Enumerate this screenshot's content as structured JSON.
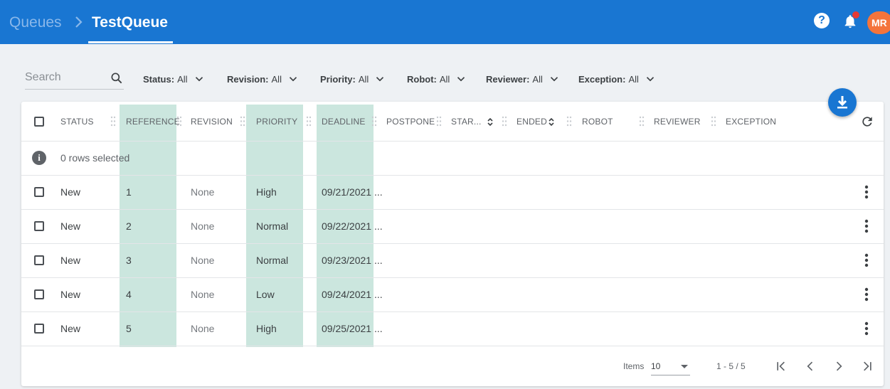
{
  "header": {
    "breadcrumb_root": "Queues",
    "breadcrumb_current": "TestQueue",
    "avatar_initials": "MR",
    "help_glyph": "?",
    "colors": {
      "bar": "#1976d2",
      "avatar": "#f4743b",
      "badge": "#e53935"
    }
  },
  "filters": {
    "search_placeholder": "Search",
    "items": [
      {
        "name": "Status:",
        "value": "All"
      },
      {
        "name": "Revision:",
        "value": "All"
      },
      {
        "name": "Priority:",
        "value": "All"
      },
      {
        "name": "Robot:",
        "value": "All"
      },
      {
        "name": "Reviewer:",
        "value": "All"
      },
      {
        "name": "Exception:",
        "value": "All"
      }
    ]
  },
  "table": {
    "columns": [
      "STATUS",
      "REFERENCE",
      "REVISION",
      "PRIORITY",
      "DEADLINE",
      "POSTPONE",
      "STAR...",
      "ENDED",
      "ROBOT",
      "REVIEWER",
      "EXCEPTION"
    ],
    "selection_info": "0 rows selected",
    "rows": [
      {
        "status": "New",
        "reference": "1",
        "revision": "None",
        "priority": "High",
        "deadline": "09/21/2021 ..."
      },
      {
        "status": "New",
        "reference": "2",
        "revision": "None",
        "priority": "Normal",
        "deadline": "09/22/2021 ..."
      },
      {
        "status": "New",
        "reference": "3",
        "revision": "None",
        "priority": "Normal",
        "deadline": "09/23/2021 ..."
      },
      {
        "status": "New",
        "reference": "4",
        "revision": "None",
        "priority": "Low",
        "deadline": "09/24/2021 ..."
      },
      {
        "status": "New",
        "reference": "5",
        "revision": "None",
        "priority": "High",
        "deadline": "09/25/2021 ..."
      }
    ],
    "highlight_color": "#a5d6c6"
  },
  "pagination": {
    "items_label": "Items",
    "page_size": "10",
    "range": "1 - 5 / 5"
  }
}
